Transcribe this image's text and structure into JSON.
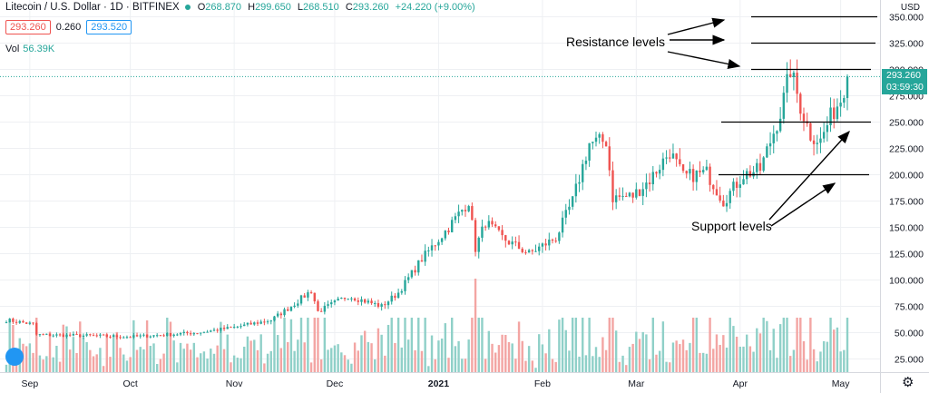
{
  "header": {
    "symbol": "Litecoin / U.S. Dollar · 1D · BITFINEX",
    "ohlc": [
      {
        "k": "O",
        "v": "268.870"
      },
      {
        "k": "H",
        "v": "299.650"
      },
      {
        "k": "L",
        "v": "268.510"
      },
      {
        "k": "C",
        "v": "293.260"
      }
    ],
    "change": "+24.220 (+9.00%)"
  },
  "quote": {
    "bid": "293.260",
    "spread": "0.260",
    "ask": "293.520"
  },
  "volume_legend": {
    "label": "Vol",
    "value": "56.39K"
  },
  "price_axis": {
    "currency": "USD"
  },
  "last_price_tag": {
    "price": "293.260",
    "countdown": "03:59:30"
  },
  "annotations": {
    "resistance": "Resistance levels",
    "support": "Support levels"
  },
  "icons": {
    "settings": "gear-icon"
  },
  "colors": {
    "up": "#26a69a",
    "down": "#ef5350",
    "vol_up": "#8fd0c8",
    "vol_down": "#f3a5a3",
    "grid": "#eef0f3"
  },
  "chart_data": {
    "type": "candlestick",
    "title": "Litecoin / U.S. Dollar · 1D · BITFINEX",
    "ylabel": "USD",
    "ylim": [
      15,
      357
    ],
    "y_ticks": [
      "25.000",
      "50.000",
      "75.000",
      "100.000",
      "125.000",
      "150.000",
      "175.000",
      "200.000",
      "225.000",
      "250.000",
      "275.000",
      "300.000",
      "325.000",
      "350.000"
    ],
    "x_ticks": [
      {
        "label": "Sep",
        "date": "2020-09-01"
      },
      {
        "label": "Oct",
        "date": "2020-10-01"
      },
      {
        "label": "Nov",
        "date": "2020-11-01"
      },
      {
        "label": "Dec",
        "date": "2020-12-01"
      },
      {
        "label": "2021",
        "date": "2021-01-01"
      },
      {
        "label": "Feb",
        "date": "2021-02-01"
      },
      {
        "label": "Mar",
        "date": "2021-03-01"
      },
      {
        "label": "Apr",
        "date": "2021-04-01"
      },
      {
        "label": "May",
        "date": "2021-05-01"
      }
    ],
    "date_range": [
      "2020-08-25",
      "2021-05-03"
    ],
    "close_anchors": [
      [
        "2020-08-25",
        62
      ],
      [
        "2020-09-02",
        58
      ],
      [
        "2020-09-03",
        48
      ],
      [
        "2020-09-20",
        47
      ],
      [
        "2020-10-01",
        46
      ],
      [
        "2020-10-21",
        50
      ],
      [
        "2020-11-01",
        55
      ],
      [
        "2020-11-12",
        62
      ],
      [
        "2020-11-18",
        75
      ],
      [
        "2020-11-24",
        90
      ],
      [
        "2020-11-26",
        70
      ],
      [
        "2020-12-05",
        85
      ],
      [
        "2020-12-15",
        75
      ],
      [
        "2020-12-20",
        88
      ],
      [
        "2020-12-27",
        120
      ],
      [
        "2021-01-04",
        150
      ],
      [
        "2021-01-10",
        175
      ],
      [
        "2021-01-12",
        130
      ],
      [
        "2021-01-15",
        155
      ],
      [
        "2021-01-20",
        140
      ],
      [
        "2021-01-28",
        125
      ],
      [
        "2021-02-05",
        140
      ],
      [
        "2021-02-10",
        175
      ],
      [
        "2021-02-15",
        230
      ],
      [
        "2021-02-20",
        232
      ],
      [
        "2021-02-22",
        178
      ],
      [
        "2021-02-28",
        180
      ],
      [
        "2021-03-05",
        195
      ],
      [
        "2021-03-11",
        222
      ],
      [
        "2021-03-15",
        198
      ],
      [
        "2021-03-22",
        202
      ],
      [
        "2021-03-27",
        175
      ],
      [
        "2021-04-02",
        200
      ],
      [
        "2021-04-07",
        205
      ],
      [
        "2021-04-13",
        258
      ],
      [
        "2021-04-16",
        300
      ],
      [
        "2021-04-19",
        265
      ],
      [
        "2021-04-22",
        238
      ],
      [
        "2021-04-25",
        232
      ],
      [
        "2021-04-28",
        255
      ],
      [
        "2021-05-01",
        272
      ],
      [
        "2021-05-03",
        293.26
      ]
    ],
    "volume_scale": "relative",
    "levels": {
      "resistance": [
        350,
        325,
        300
      ],
      "support": [
        250,
        200
      ]
    }
  }
}
